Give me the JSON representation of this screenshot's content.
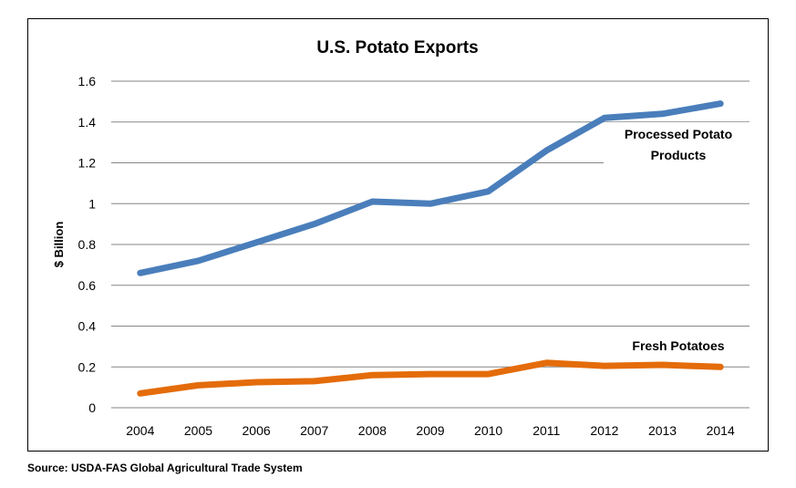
{
  "source": "Source: USDA-FAS Global Agricultural Trade System",
  "chart_data": {
    "type": "line",
    "title": "U.S. Potato Exports",
    "xlabel": "",
    "ylabel": "$ Billion",
    "x": [
      "2004",
      "2005",
      "2006",
      "2007",
      "2008",
      "2009",
      "2010",
      "2011",
      "2012",
      "2013",
      "2014"
    ],
    "ylim": [
      0,
      1.6
    ],
    "yticks": [
      "0",
      "0.2",
      "0.4",
      "0.6",
      "0.8",
      "1",
      "1.2",
      "1.4",
      "1.6"
    ],
    "grid": true,
    "legend": "none",
    "series": [
      {
        "name": "Processed Potato Products",
        "label_lines": [
          "Processed Potato",
          "Products"
        ],
        "color": "#4A7EBB",
        "values": [
          0.66,
          0.72,
          0.81,
          0.9,
          1.01,
          1.0,
          1.06,
          1.26,
          1.42,
          1.44,
          1.49
        ]
      },
      {
        "name": "Fresh Potatoes",
        "label_lines": [
          "Fresh Potatoes"
        ],
        "color": "#E46C0A",
        "values": [
          0.07,
          0.11,
          0.125,
          0.13,
          0.16,
          0.165,
          0.165,
          0.22,
          0.205,
          0.21,
          0.2
        ]
      }
    ]
  }
}
